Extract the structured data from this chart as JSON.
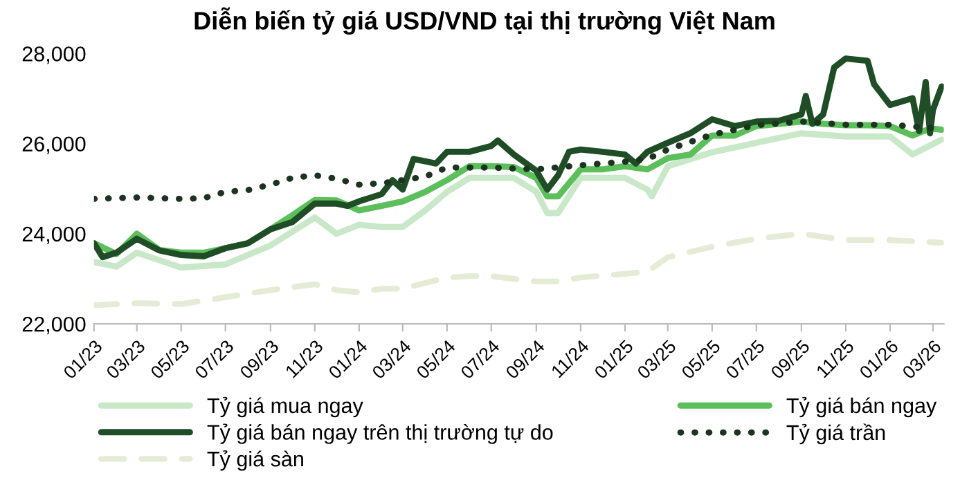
{
  "chart_data": {
    "type": "line",
    "title": "Diễn biến tỷ giá USD/VND tại thị trường Việt Nam",
    "ylim": [
      22000,
      28000
    ],
    "yticks": [
      {
        "value": 22000,
        "label": "22,000"
      },
      {
        "value": 24000,
        "label": "24,000"
      },
      {
        "value": 26000,
        "label": "26,000"
      },
      {
        "value": 28000,
        "label": "28,000"
      }
    ],
    "xlim": [
      "2023-01-01",
      "2026-03-16"
    ],
    "xticks": [
      {
        "value": "2023-01-01",
        "label": "01/23"
      },
      {
        "value": "2023-03-01",
        "label": "03/23"
      },
      {
        "value": "2023-05-01",
        "label": "05/23"
      },
      {
        "value": "2023-07-01",
        "label": "07/23"
      },
      {
        "value": "2023-09-01",
        "label": "09/23"
      },
      {
        "value": "2023-11-01",
        "label": "11/23"
      },
      {
        "value": "2024-01-01",
        "label": "01/24"
      },
      {
        "value": "2024-03-01",
        "label": "03/24"
      },
      {
        "value": "2024-05-01",
        "label": "05/24"
      },
      {
        "value": "2024-07-01",
        "label": "07/24"
      },
      {
        "value": "2024-09-01",
        "label": "09/24"
      },
      {
        "value": "2024-11-01",
        "label": "11/24"
      },
      {
        "value": "2025-01-01",
        "label": "01/25"
      },
      {
        "value": "2025-03-01",
        "label": "03/25"
      },
      {
        "value": "2025-05-01",
        "label": "05/25"
      },
      {
        "value": "2025-07-01",
        "label": "07/25"
      },
      {
        "value": "2025-09-01",
        "label": "09/25"
      },
      {
        "value": "2025-11-01",
        "label": "11/25"
      },
      {
        "value": "2026-01-01",
        "label": "01/26"
      },
      {
        "value": "2026-03-01",
        "label": "03/26"
      }
    ],
    "grid": false,
    "legend": "bottom",
    "marker": "none",
    "series": [
      {
        "name": "Tỷ giá mua ngay",
        "color": "#c8e8c8",
        "line_style": "solid",
        "x": [
          "2023-01-01",
          "2023-02-01",
          "2023-03-01",
          "2023-05-01",
          "2023-07-01",
          "2023-09-01",
          "2023-11-01",
          "2023-12-01",
          "2024-01-01",
          "2024-02-01",
          "2024-03-01",
          "2024-04-01",
          "2024-05-01",
          "2024-06-01",
          "2024-07-01",
          "2024-08-01",
          "2024-09-01",
          "2024-09-16",
          "2024-10-01",
          "2024-11-01",
          "2025-01-01",
          "2025-02-01",
          "2025-02-07",
          "2025-03-01",
          "2025-05-01",
          "2025-07-01",
          "2025-09-01",
          "2025-11-01",
          "2026-01-01",
          "2026-02-01",
          "2026-03-01",
          "2026-03-13"
        ],
        "values": [
          23370,
          23270,
          23580,
          23250,
          23320,
          23740,
          24360,
          24000,
          24200,
          24150,
          24150,
          24520,
          24930,
          25240,
          25240,
          25240,
          24930,
          24460,
          24460,
          25240,
          25240,
          24980,
          24830,
          25500,
          25810,
          26020,
          26230,
          26160,
          26160,
          25760,
          25990,
          26090
        ]
      },
      {
        "name": "Tỷ giá bán ngay",
        "color": "#5cbf5c",
        "line_style": "solid",
        "x": [
          "2023-01-01",
          "2023-02-01",
          "2023-03-01",
          "2023-04-01",
          "2023-05-01",
          "2023-06-01",
          "2023-07-01",
          "2023-08-01",
          "2023-09-01",
          "2023-10-01",
          "2023-11-01",
          "2023-12-01",
          "2024-01-01",
          "2024-02-01",
          "2024-03-01",
          "2024-04-01",
          "2024-05-01",
          "2024-06-01",
          "2024-07-01",
          "2024-08-01",
          "2024-09-01",
          "2024-09-16",
          "2024-10-01",
          "2024-11-01",
          "2024-12-01",
          "2025-01-01",
          "2025-02-01",
          "2025-03-01",
          "2025-04-01",
          "2025-05-01",
          "2025-06-01",
          "2025-07-01",
          "2025-08-01",
          "2025-09-01",
          "2025-10-01",
          "2025-11-01",
          "2025-12-01",
          "2026-01-01",
          "2026-02-01",
          "2026-02-16",
          "2026-03-01",
          "2026-03-13"
        ],
        "values": [
          23790,
          23550,
          24000,
          23640,
          23580,
          23580,
          23680,
          23790,
          24100,
          24410,
          24750,
          24740,
          24520,
          24620,
          24720,
          24930,
          25190,
          25500,
          25500,
          25480,
          25240,
          24830,
          24830,
          25430,
          25430,
          25500,
          25430,
          25680,
          25760,
          26180,
          26180,
          26390,
          26440,
          26490,
          26440,
          26410,
          26410,
          26390,
          26180,
          26280,
          26330,
          26310
        ]
      },
      {
        "name": "Tỷ giá bán ngay trên thị trường tự do",
        "color": "#1f4d26",
        "line_style": "solid",
        "x": [
          "2023-01-01",
          "2023-01-13",
          "2023-02-01",
          "2023-03-01",
          "2023-04-01",
          "2023-05-01",
          "2023-06-01",
          "2023-07-01",
          "2023-08-01",
          "2023-09-01",
          "2023-10-01",
          "2023-11-01",
          "2023-12-01",
          "2023-12-16",
          "2024-01-01",
          "2024-02-01",
          "2024-02-16",
          "2024-03-01",
          "2024-03-16",
          "2024-04-01",
          "2024-04-16",
          "2024-05-01",
          "2024-06-01",
          "2024-07-01",
          "2024-07-10",
          "2024-08-01",
          "2024-09-01",
          "2024-09-16",
          "2024-10-01",
          "2024-10-16",
          "2024-11-01",
          "2024-12-01",
          "2025-01-01",
          "2025-01-16",
          "2025-02-01",
          "2025-03-01",
          "2025-04-01",
          "2025-05-01",
          "2025-06-01",
          "2025-07-01",
          "2025-08-01",
          "2025-09-01",
          "2025-09-07",
          "2025-09-16",
          "2025-10-01",
          "2025-10-16",
          "2025-11-01",
          "2025-12-01",
          "2025-12-10",
          "2026-01-01",
          "2026-02-01",
          "2026-02-10",
          "2026-02-19",
          "2026-02-25",
          "2026-03-01",
          "2026-03-13"
        ],
        "values": [
          23790,
          23480,
          23580,
          23890,
          23630,
          23530,
          23500,
          23680,
          23790,
          24100,
          24260,
          24670,
          24670,
          24620,
          24720,
          24880,
          25190,
          24980,
          25660,
          25610,
          25560,
          25820,
          25820,
          25950,
          26070,
          25760,
          25400,
          24980,
          25300,
          25820,
          25870,
          25820,
          25760,
          25560,
          25820,
          26020,
          26230,
          26540,
          26390,
          26490,
          26510,
          26650,
          27060,
          26440,
          26650,
          27690,
          27890,
          27840,
          27320,
          26860,
          27010,
          26280,
          27370,
          26230,
          26750,
          27270
        ]
      },
      {
        "name": "Tỷ giá trần",
        "color": "#1c3320",
        "line_style": "dotted",
        "x": [
          "2023-01-01",
          "2023-03-01",
          "2023-05-01",
          "2023-06-01",
          "2023-07-01",
          "2023-08-01",
          "2023-09-01",
          "2023-10-01",
          "2023-11-01",
          "2023-12-01",
          "2024-01-01",
          "2024-02-01",
          "2024-03-01",
          "2024-04-01",
          "2024-05-01",
          "2024-07-01",
          "2024-09-01",
          "2024-11-01",
          "2025-01-01",
          "2025-02-01",
          "2025-03-01",
          "2025-05-01",
          "2025-07-01",
          "2025-09-01",
          "2025-11-01",
          "2026-01-01",
          "2026-03-13"
        ],
        "values": [
          24775,
          24806,
          24775,
          24790,
          24930,
          24970,
          25090,
          25240,
          25300,
          25220,
          25090,
          25120,
          25190,
          25270,
          25470,
          25470,
          25430,
          25520,
          25600,
          25660,
          25870,
          26200,
          26410,
          26490,
          26420,
          26420,
          26330
        ]
      },
      {
        "name": "Tỷ giá sàn",
        "color": "#e4ecd6",
        "line_style": "dashed",
        "x": [
          "2023-01-01",
          "2023-03-01",
          "2023-05-01",
          "2023-07-01",
          "2023-09-01",
          "2023-11-01",
          "2023-12-01",
          "2024-01-01",
          "2024-02-01",
          "2024-03-01",
          "2024-05-01",
          "2024-06-01",
          "2024-07-01",
          "2024-09-01",
          "2024-10-01",
          "2024-11-01",
          "2025-01-01",
          "2025-02-01",
          "2025-03-01",
          "2025-05-01",
          "2025-07-01",
          "2025-09-01",
          "2025-11-01",
          "2026-01-01",
          "2026-03-13"
        ],
        "values": [
          22416,
          22460,
          22440,
          22590,
          22750,
          22880,
          22750,
          22700,
          22780,
          22780,
          23030,
          23060,
          23060,
          22940,
          22940,
          23030,
          23110,
          23160,
          23480,
          23710,
          23890,
          24000,
          23860,
          23860,
          23800
        ]
      }
    ]
  }
}
